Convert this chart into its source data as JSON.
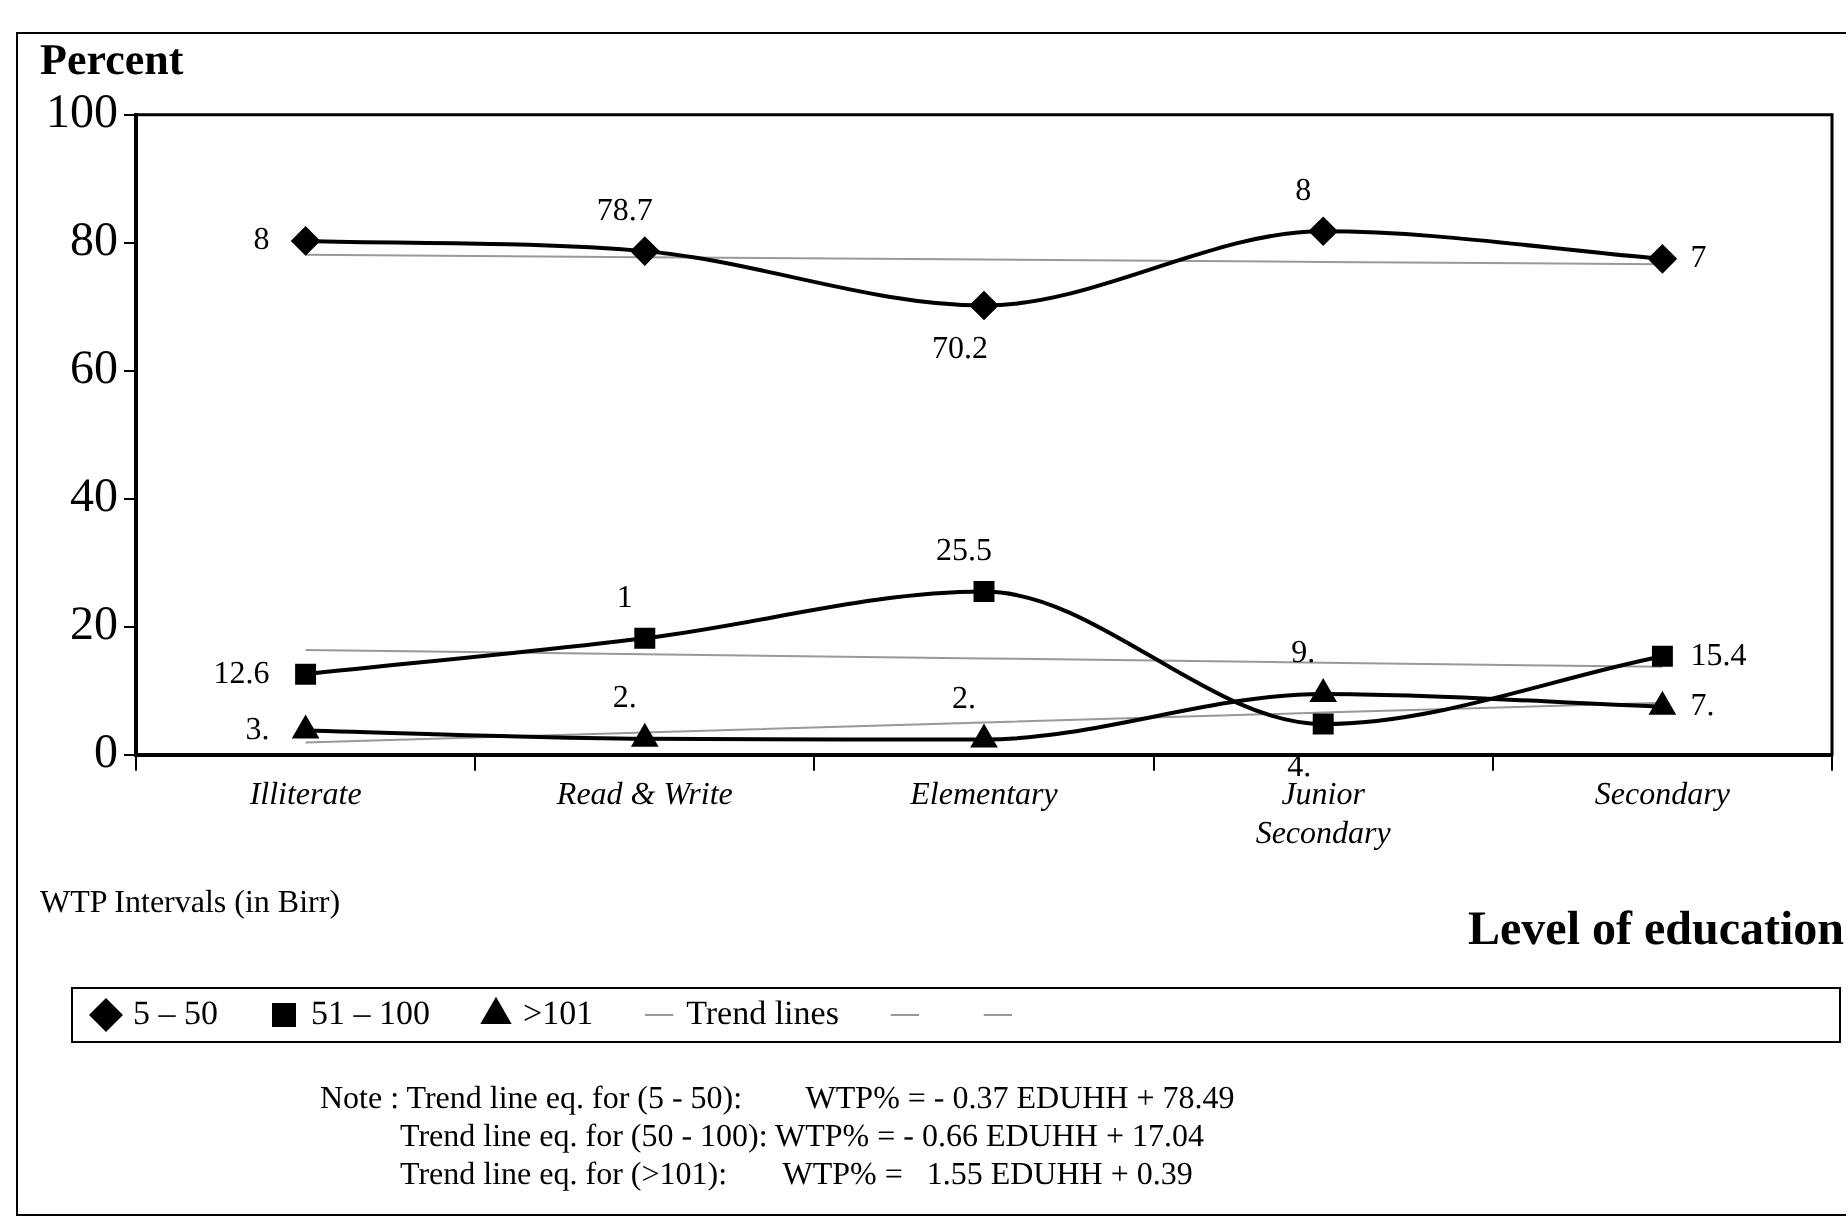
{
  "chart_data": {
    "type": "line",
    "ylabel": "Percent",
    "xlabel": "Level of education",
    "legend_title": "WTP Intervals (in Birr)",
    "legend": "bottom",
    "grid": false,
    "categories": [
      "Illiterate",
      "Read & Write",
      "Elementary",
      "Junior Secondary",
      "Secondary"
    ],
    "ylim": [
      0,
      100
    ],
    "yticks": [
      0,
      20,
      40,
      60,
      80,
      100
    ],
    "series": [
      {
        "name": "5 – 50",
        "color": "#000000",
        "marker": "diamond",
        "values": [
          80.3,
          78.7,
          70.2,
          81.8,
          77.5
        ],
        "value_labels": [
          null,
          "78.7",
          "70.2",
          null,
          null
        ]
      },
      {
        "name": "51 – 100",
        "color": "#000000",
        "marker": "square",
        "values": [
          12.6,
          18.2,
          25.5,
          4.8,
          15.4
        ],
        "value_labels": [
          "12.6",
          null,
          "25.5",
          null,
          "15.4"
        ]
      },
      {
        "name": ">101",
        "color": "#000000",
        "marker": "triangle",
        "values": [
          3.8,
          2.5,
          2.4,
          9.5,
          7.5
        ],
        "value_labels": [
          null,
          null,
          null,
          null,
          null
        ]
      },
      {
        "name": "Trend lines",
        "color": "#999999",
        "marker": "none",
        "values": [
          78.12,
          77.75,
          77.38,
          77.01,
          76.64
        ]
      },
      {
        "color": "#999999",
        "marker": "none",
        "values": [
          16.38,
          15.72,
          15.06,
          14.4,
          13.74
        ]
      },
      {
        "color": "#999999",
        "marker": "none",
        "values": [
          1.94,
          3.49,
          5.04,
          6.59,
          8.14
        ]
      }
    ],
    "annotations": [
      {
        "text": "8",
        "x": "Illiterate",
        "y": 80.3
      },
      {
        "text": "8",
        "x": "Junior Secondary",
        "y": 81.8
      },
      {
        "text": "7",
        "x": "Secondary",
        "y": 77.5
      },
      {
        "text": "1",
        "x": "Read & Write",
        "y": 18.2
      },
      {
        "text": "4.",
        "x": "Junior Secondary",
        "y": 4.8
      },
      {
        "text": "3.",
        "x": "Illiterate",
        "y": 3.8
      },
      {
        "text": "2.",
        "x": "Read & Write",
        "y": 2.5
      },
      {
        "text": "2.",
        "x": "Elementary",
        "y": 2.4
      },
      {
        "text": "9.",
        "x": "Junior Secondary",
        "y": 9.5
      },
      {
        "text": "7.",
        "x": "Secondary",
        "y": 7.5
      },
      "Note : Trend line eq. for (5 - 50):        WTP% = - 0.37 EDUHH + 78.49",
      "Trend line eq. for (50 - 100): WTP% = - 0.66 EDUHH + 17.04",
      "Trend line eq. for (>101):       WTP% =   1.55 EDUHH + 0.39"
    ]
  }
}
